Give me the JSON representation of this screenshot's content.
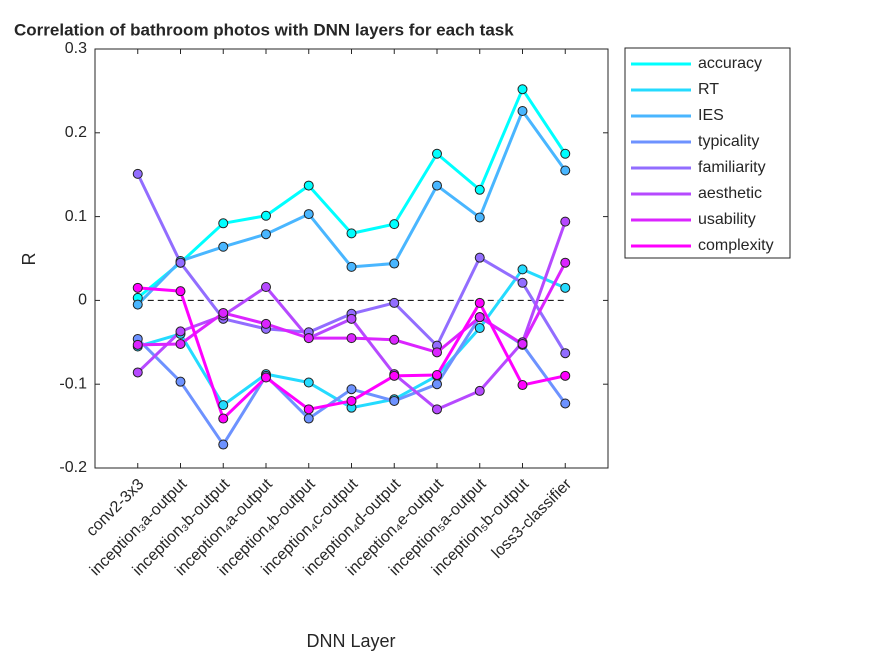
{
  "chart_data": {
    "type": "line",
    "title": "Correlation of bathroom photos with DNN layers for each task",
    "x_label": "DNN Layer",
    "y_label": "R",
    "categories": [
      "conv2-3x3",
      "inception₃a-output",
      "inception₃b-output",
      "inception₄a-output",
      "inception₄b-output",
      "inception₄c-output",
      "inception₄d-output",
      "inception₄e-output",
      "inception₅a-output",
      "inception₅b-output",
      "loss3-classifier"
    ],
    "ylim": [
      -0.2,
      0.3
    ],
    "yticks": [
      -0.2,
      -0.1,
      0,
      0.1,
      0.2,
      0.3
    ],
    "hline": 0,
    "legend": "top-right-outside",
    "series": [
      {
        "name": "accuracy",
        "color": "#00ffff",
        "values": [
          0.003,
          0.045,
          0.092,
          0.101,
          0.137,
          0.08,
          0.091,
          0.175,
          0.132,
          0.252,
          0.175
        ]
      },
      {
        "name": "RT",
        "color": "#24dbff",
        "values": [
          -0.055,
          -0.04,
          -0.125,
          -0.088,
          -0.098,
          -0.128,
          -0.118,
          -0.09,
          -0.033,
          0.037,
          0.015
        ]
      },
      {
        "name": "IES",
        "color": "#49b6ff",
        "values": [
          -0.005,
          0.047,
          0.064,
          0.079,
          0.103,
          0.04,
          0.044,
          0.137,
          0.099,
          0.226,
          0.155
        ]
      },
      {
        "name": "typicality",
        "color": "#6d92ff",
        "values": [
          -0.046,
          -0.097,
          -0.172,
          -0.09,
          -0.141,
          -0.106,
          -0.12,
          -0.1,
          -0.02,
          -0.053,
          -0.123
        ]
      },
      {
        "name": "familiarity",
        "color": "#926dff",
        "values": [
          0.151,
          0.045,
          -0.022,
          -0.034,
          -0.038,
          -0.016,
          -0.003,
          -0.054,
          0.051,
          0.021,
          -0.063
        ]
      },
      {
        "name": "aesthetic",
        "color": "#b649ff",
        "values": [
          -0.086,
          -0.037,
          -0.018,
          0.016,
          -0.045,
          -0.022,
          -0.088,
          -0.13,
          -0.108,
          -0.05,
          0.094
        ]
      },
      {
        "name": "usability",
        "color": "#db24ff",
        "values": [
          -0.053,
          -0.052,
          -0.015,
          -0.028,
          -0.045,
          -0.045,
          -0.047,
          -0.062,
          -0.02,
          -0.052,
          0.045
        ]
      },
      {
        "name": "complexity",
        "color": "#ff00ff",
        "values": [
          0.015,
          0.011,
          -0.141,
          -0.092,
          -0.13,
          -0.12,
          -0.09,
          -0.089,
          -0.003,
          -0.101,
          -0.09
        ]
      }
    ]
  }
}
